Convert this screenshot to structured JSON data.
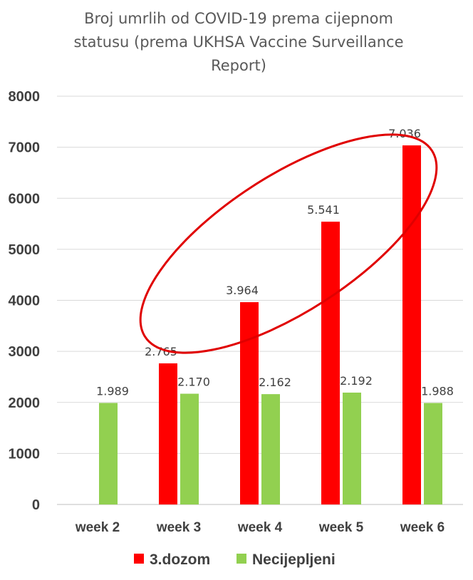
{
  "chart_data": {
    "type": "bar",
    "title_lines": [
      "Broj umrlih od COVID-19 prema cijepnom",
      "statusu (prema UKHSA Vaccine Surveillance",
      "Report)"
    ],
    "categories": [
      "week 2",
      "week 3",
      "week 4",
      "week 5",
      "week 6"
    ],
    "series": [
      {
        "name": "3.dozom",
        "color": "#ff0000",
        "values": [
          null,
          2765,
          3964,
          5541,
          7036
        ],
        "labels": [
          "",
          "2.765",
          "3.964",
          "5.541",
          "7.036"
        ]
      },
      {
        "name": "Necijepljeni",
        "color": "#92d050",
        "values": [
          1989,
          2170,
          2162,
          2192,
          1988
        ],
        "labels": [
          "1.989",
          "2.170",
          "2.162",
          "2.192",
          "1.988"
        ]
      }
    ],
    "ylim": [
      0,
      8000
    ],
    "yticks": [
      0,
      1000,
      2000,
      3000,
      4000,
      5000,
      6000,
      7000,
      8000
    ],
    "grid": true,
    "legend_position": "bottom",
    "annotation": {
      "shape": "ellipse",
      "color": "#e00000",
      "encloses": "3.dozom bars week 3 to week 6"
    }
  }
}
